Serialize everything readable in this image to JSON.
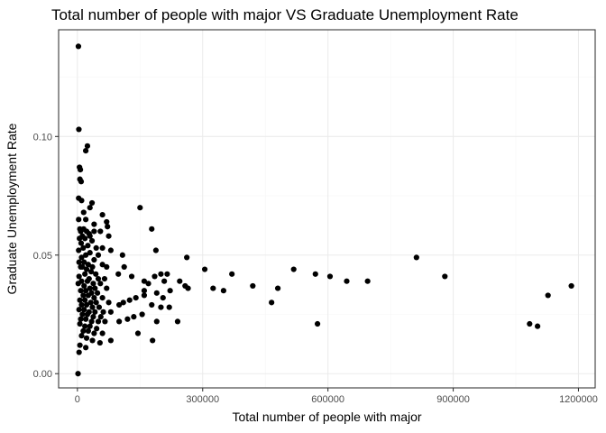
{
  "chart_data": {
    "type": "scatter",
    "title": "Total number of people with major VS Graduate Unemployment Rate",
    "xlabel": "Total number of people with major",
    "ylabel": "Graduate Unemployment Rate",
    "xlim": [
      -45000,
      1240000
    ],
    "ylim": [
      -0.006,
      0.145
    ],
    "x_ticks": [
      0,
      300000,
      600000,
      900000,
      1200000
    ],
    "x_tick_labels": [
      "0",
      "300000",
      "600000",
      "900000",
      "1200000"
    ],
    "y_ticks": [
      0.0,
      0.05,
      0.1
    ],
    "y_tick_labels": [
      "0.00",
      "0.05",
      "0.10"
    ],
    "grid": true,
    "point_color": "#000000",
    "points": [
      [
        2400,
        0.138
      ],
      [
        3500,
        0.103
      ],
      [
        5000,
        0.087
      ],
      [
        7000,
        0.086
      ],
      [
        24000,
        0.096
      ],
      [
        20000,
        0.094
      ],
      [
        6000,
        0.082
      ],
      [
        9000,
        0.081
      ],
      [
        3000,
        0.074
      ],
      [
        1500,
        0.0
      ],
      [
        10000,
        0.073
      ],
      [
        35000,
        0.072
      ],
      [
        30000,
        0.07
      ],
      [
        15000,
        0.068
      ],
      [
        3000,
        0.065
      ],
      [
        20000,
        0.065
      ],
      [
        40000,
        0.063
      ],
      [
        60000,
        0.067
      ],
      [
        70000,
        0.064
      ],
      [
        6000,
        0.061
      ],
      [
        15000,
        0.061
      ],
      [
        22000,
        0.06
      ],
      [
        28000,
        0.059
      ],
      [
        8000,
        0.06
      ],
      [
        12000,
        0.058
      ],
      [
        30000,
        0.058
      ],
      [
        55000,
        0.06
      ],
      [
        40000,
        0.06
      ],
      [
        75000,
        0.058
      ],
      [
        5000,
        0.057
      ],
      [
        18000,
        0.057
      ],
      [
        35000,
        0.056
      ],
      [
        25000,
        0.054
      ],
      [
        9000,
        0.055
      ],
      [
        14000,
        0.053
      ],
      [
        45000,
        0.053
      ],
      [
        60000,
        0.053
      ],
      [
        80000,
        0.052
      ],
      [
        3000,
        0.052
      ],
      [
        20000,
        0.05
      ],
      [
        30000,
        0.051
      ],
      [
        50000,
        0.05
      ],
      [
        10000,
        0.049
      ],
      [
        40000,
        0.048
      ],
      [
        4000,
        0.047
      ],
      [
        16000,
        0.047
      ],
      [
        26000,
        0.046
      ],
      [
        36000,
        0.045
      ],
      [
        60000,
        0.046
      ],
      [
        70000,
        0.045
      ],
      [
        8000,
        0.045
      ],
      [
        12000,
        0.045
      ],
      [
        22000,
        0.044
      ],
      [
        33000,
        0.043
      ],
      [
        44000,
        0.042
      ],
      [
        18000,
        0.042
      ],
      [
        4000,
        0.041
      ],
      [
        28000,
        0.04
      ],
      [
        50000,
        0.04
      ],
      [
        65000,
        0.04
      ],
      [
        10000,
        0.039
      ],
      [
        24000,
        0.039
      ],
      [
        38000,
        0.038
      ],
      [
        55000,
        0.038
      ],
      [
        2000,
        0.038
      ],
      [
        16000,
        0.037
      ],
      [
        30000,
        0.036
      ],
      [
        42000,
        0.036
      ],
      [
        70000,
        0.036
      ],
      [
        8000,
        0.035
      ],
      [
        20000,
        0.035
      ],
      [
        34000,
        0.034
      ],
      [
        48000,
        0.034
      ],
      [
        14000,
        0.033
      ],
      [
        26000,
        0.033
      ],
      [
        40000,
        0.032
      ],
      [
        60000,
        0.032
      ],
      [
        6000,
        0.031
      ],
      [
        18000,
        0.031
      ],
      [
        32000,
        0.03
      ],
      [
        45000,
        0.03
      ],
      [
        75000,
        0.03
      ],
      [
        10000,
        0.029
      ],
      [
        22000,
        0.029
      ],
      [
        36000,
        0.028
      ],
      [
        52000,
        0.028
      ],
      [
        4000,
        0.027
      ],
      [
        16000,
        0.027
      ],
      [
        28000,
        0.026
      ],
      [
        42000,
        0.026
      ],
      [
        62000,
        0.026
      ],
      [
        80000,
        0.026
      ],
      [
        12000,
        0.025
      ],
      [
        24000,
        0.025
      ],
      [
        38000,
        0.024
      ],
      [
        56000,
        0.024
      ],
      [
        8000,
        0.023
      ],
      [
        20000,
        0.023
      ],
      [
        34000,
        0.022
      ],
      [
        50000,
        0.022
      ],
      [
        66000,
        0.022
      ],
      [
        6000,
        0.021
      ],
      [
        18000,
        0.02
      ],
      [
        30000,
        0.02
      ],
      [
        46000,
        0.019
      ],
      [
        14000,
        0.018
      ],
      [
        26000,
        0.018
      ],
      [
        40000,
        0.017
      ],
      [
        60000,
        0.017
      ],
      [
        10000,
        0.016
      ],
      [
        22000,
        0.015
      ],
      [
        36000,
        0.014
      ],
      [
        54000,
        0.013
      ],
      [
        80000,
        0.014
      ],
      [
        6000,
        0.012
      ],
      [
        20000,
        0.011
      ],
      [
        4000,
        0.009
      ],
      [
        72000,
        0.062
      ],
      [
        108000,
        0.05
      ],
      [
        150000,
        0.07
      ],
      [
        178000,
        0.061
      ],
      [
        188000,
        0.052
      ],
      [
        112000,
        0.045
      ],
      [
        98000,
        0.042
      ],
      [
        130000,
        0.041
      ],
      [
        160000,
        0.039
      ],
      [
        170000,
        0.038
      ],
      [
        185000,
        0.041
      ],
      [
        200000,
        0.042
      ],
      [
        215000,
        0.042
      ],
      [
        208000,
        0.039
      ],
      [
        245000,
        0.039
      ],
      [
        262000,
        0.049
      ],
      [
        258000,
        0.037
      ],
      [
        265000,
        0.036
      ],
      [
        222000,
        0.035
      ],
      [
        190000,
        0.034
      ],
      [
        160000,
        0.033
      ],
      [
        140000,
        0.032
      ],
      [
        125000,
        0.031
      ],
      [
        110000,
        0.03
      ],
      [
        100000,
        0.029
      ],
      [
        178000,
        0.029
      ],
      [
        200000,
        0.028
      ],
      [
        220000,
        0.028
      ],
      [
        155000,
        0.025
      ],
      [
        135000,
        0.024
      ],
      [
        120000,
        0.023
      ],
      [
        100000,
        0.022
      ],
      [
        190000,
        0.022
      ],
      [
        240000,
        0.022
      ],
      [
        145000,
        0.017
      ],
      [
        180000,
        0.014
      ],
      [
        160000,
        0.035
      ],
      [
        205000,
        0.032
      ],
      [
        305000,
        0.044
      ],
      [
        325000,
        0.036
      ],
      [
        350000,
        0.035
      ],
      [
        370000,
        0.042
      ],
      [
        420000,
        0.037
      ],
      [
        480000,
        0.036
      ],
      [
        465000,
        0.03
      ],
      [
        518000,
        0.044
      ],
      [
        570000,
        0.042
      ],
      [
        575000,
        0.021
      ],
      [
        605000,
        0.041
      ],
      [
        645000,
        0.039
      ],
      [
        695000,
        0.039
      ],
      [
        812000,
        0.049
      ],
      [
        880000,
        0.041
      ],
      [
        1083000,
        0.021
      ],
      [
        1102000,
        0.02
      ],
      [
        1127000,
        0.033
      ],
      [
        1183000,
        0.037
      ]
    ]
  }
}
